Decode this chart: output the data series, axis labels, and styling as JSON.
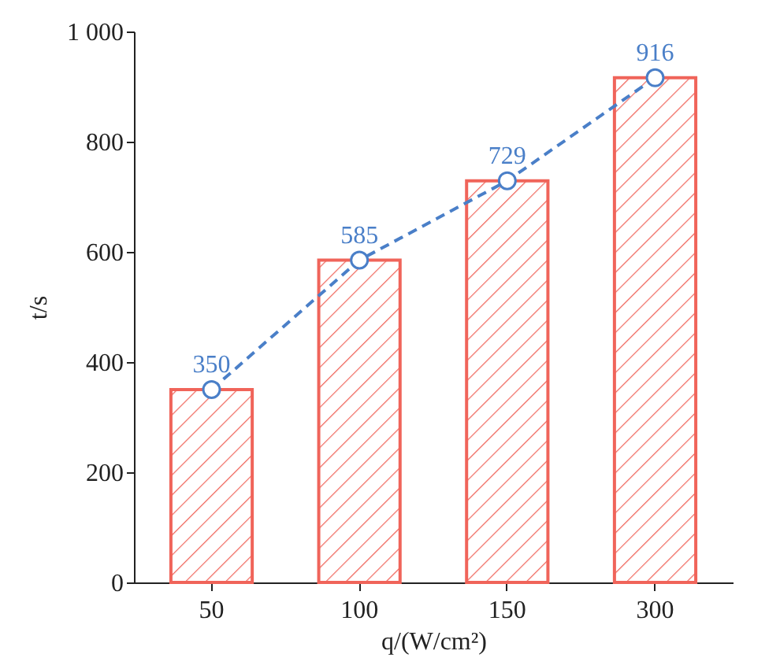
{
  "chart_data": {
    "type": "bar",
    "xlabel": "q/(W/cm²)",
    "ylabel": "t/s",
    "categories": [
      "50",
      "100",
      "150",
      "300"
    ],
    "series": [
      {
        "color": "#f0645a",
        "values": [
          350,
          585,
          729,
          916
        ]
      },
      {
        "type": "line",
        "color": "#4a7fc8",
        "values": [
          350,
          585,
          729,
          916
        ],
        "value_labels": [
          "350",
          "585",
          "729",
          "916"
        ],
        "line_style": "dashed",
        "marker": "circle"
      }
    ],
    "ylim": [
      0,
      1000
    ],
    "yticks": [
      0,
      200,
      400,
      600,
      800,
      {
        "value": 1000,
        "label": "1 000"
      }
    ],
    "grid": false
  }
}
